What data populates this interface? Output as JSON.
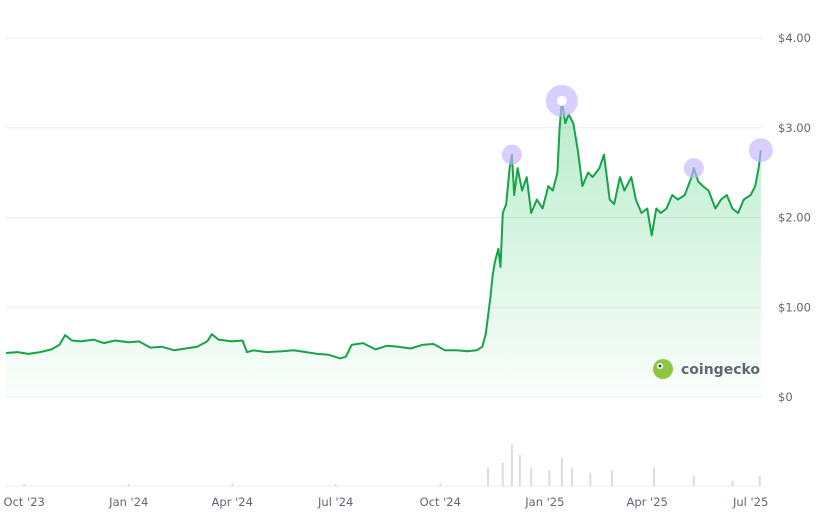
{
  "chart_data": {
    "type": "area",
    "title": "",
    "xlabel": "",
    "ylabel": "",
    "ylim": [
      0,
      4
    ],
    "grid": true,
    "line_color": "#16a34a",
    "fill_color": "#22c55e",
    "highlight_color": "#c4b5fd",
    "y_ticks": [
      {
        "value": 0,
        "label": "$0"
      },
      {
        "value": 1,
        "label": "$1.00"
      },
      {
        "value": 2,
        "label": "$2.00"
      },
      {
        "value": 3,
        "label": "$3.00"
      },
      {
        "value": 4,
        "label": "$4.00"
      }
    ],
    "x_ticks": [
      {
        "date": "2023-10-01",
        "label": "Oct '23"
      },
      {
        "date": "2024-01-01",
        "label": "Jan '24"
      },
      {
        "date": "2024-04-01",
        "label": "Apr '24"
      },
      {
        "date": "2024-07-01",
        "label": "Jul '24"
      },
      {
        "date": "2024-10-01",
        "label": "Oct '24"
      },
      {
        "date": "2025-01-01",
        "label": "Jan '25"
      },
      {
        "date": "2025-04-01",
        "label": "Apr '25"
      },
      {
        "date": "2025-07-01",
        "label": "Jul '25"
      }
    ],
    "x_range": [
      "2023-09-15",
      "2025-07-11"
    ],
    "series": [
      {
        "points": [
          [
            "2023-09-15",
            0.49
          ],
          [
            "2023-09-25",
            0.5
          ],
          [
            "2023-10-05",
            0.48
          ],
          [
            "2023-10-15",
            0.5
          ],
          [
            "2023-10-25",
            0.53
          ],
          [
            "2023-11-01",
            0.58
          ],
          [
            "2023-11-06",
            0.69
          ],
          [
            "2023-11-12",
            0.63
          ],
          [
            "2023-11-20",
            0.62
          ],
          [
            "2023-12-01",
            0.64
          ],
          [
            "2023-12-10",
            0.6
          ],
          [
            "2023-12-20",
            0.63
          ],
          [
            "2024-01-01",
            0.61
          ],
          [
            "2024-01-10",
            0.62
          ],
          [
            "2024-01-20",
            0.55
          ],
          [
            "2024-01-30",
            0.56
          ],
          [
            "2024-02-10",
            0.52
          ],
          [
            "2024-02-20",
            0.54
          ],
          [
            "2024-03-01",
            0.56
          ],
          [
            "2024-03-10",
            0.62
          ],
          [
            "2024-03-14",
            0.7
          ],
          [
            "2024-03-20",
            0.64
          ],
          [
            "2024-04-01",
            0.62
          ],
          [
            "2024-04-10",
            0.63
          ],
          [
            "2024-04-14",
            0.5
          ],
          [
            "2024-04-20",
            0.52
          ],
          [
            "2024-05-01",
            0.5
          ],
          [
            "2024-05-15",
            0.51
          ],
          [
            "2024-05-25",
            0.52
          ],
          [
            "2024-06-05",
            0.5
          ],
          [
            "2024-06-15",
            0.48
          ],
          [
            "2024-06-25",
            0.47
          ],
          [
            "2024-07-05",
            0.43
          ],
          [
            "2024-07-10",
            0.45
          ],
          [
            "2024-07-15",
            0.58
          ],
          [
            "2024-07-25",
            0.6
          ],
          [
            "2024-08-05",
            0.53
          ],
          [
            "2024-08-15",
            0.57
          ],
          [
            "2024-08-25",
            0.56
          ],
          [
            "2024-09-05",
            0.54
          ],
          [
            "2024-09-15",
            0.58
          ],
          [
            "2024-09-25",
            0.59
          ],
          [
            "2024-10-01",
            0.55
          ],
          [
            "2024-10-05",
            0.52
          ],
          [
            "2024-10-15",
            0.52
          ],
          [
            "2024-10-25",
            0.51
          ],
          [
            "2024-11-02",
            0.52
          ],
          [
            "2024-11-07",
            0.56
          ],
          [
            "2024-11-10",
            0.7
          ],
          [
            "2024-11-12",
            0.9
          ],
          [
            "2024-11-14",
            1.1
          ],
          [
            "2024-11-16",
            1.35
          ],
          [
            "2024-11-18",
            1.5
          ],
          [
            "2024-11-21",
            1.65
          ],
          [
            "2024-11-23",
            1.45
          ],
          [
            "2024-11-25",
            2.05
          ],
          [
            "2024-11-28",
            2.15
          ],
          [
            "2024-12-01",
            2.55
          ],
          [
            "2024-12-03",
            2.7
          ],
          [
            "2024-12-05",
            2.25
          ],
          [
            "2024-12-08",
            2.55
          ],
          [
            "2024-12-12",
            2.3
          ],
          [
            "2024-12-16",
            2.45
          ],
          [
            "2024-12-20",
            2.05
          ],
          [
            "2024-12-25",
            2.2
          ],
          [
            "2024-12-30",
            2.1
          ],
          [
            "2025-01-04",
            2.35
          ],
          [
            "2025-01-08",
            2.3
          ],
          [
            "2025-01-12",
            2.5
          ],
          [
            "2025-01-14",
            3.0
          ],
          [
            "2025-01-16",
            3.3
          ],
          [
            "2025-01-19",
            3.05
          ],
          [
            "2025-01-22",
            3.15
          ],
          [
            "2025-01-26",
            3.05
          ],
          [
            "2025-01-30",
            2.75
          ],
          [
            "2025-02-03",
            2.35
          ],
          [
            "2025-02-08",
            2.5
          ],
          [
            "2025-02-12",
            2.45
          ],
          [
            "2025-02-18",
            2.55
          ],
          [
            "2025-02-22",
            2.7
          ],
          [
            "2025-02-27",
            2.2
          ],
          [
            "2025-03-03",
            2.15
          ],
          [
            "2025-03-08",
            2.45
          ],
          [
            "2025-03-12",
            2.3
          ],
          [
            "2025-03-18",
            2.45
          ],
          [
            "2025-03-22",
            2.2
          ],
          [
            "2025-03-27",
            2.05
          ],
          [
            "2025-04-01",
            2.1
          ],
          [
            "2025-04-05",
            1.8
          ],
          [
            "2025-04-09",
            2.1
          ],
          [
            "2025-04-13",
            2.05
          ],
          [
            "2025-04-18",
            2.1
          ],
          [
            "2025-04-23",
            2.25
          ],
          [
            "2025-04-28",
            2.2
          ],
          [
            "2025-05-04",
            2.25
          ],
          [
            "2025-05-10",
            2.45
          ],
          [
            "2025-05-12",
            2.55
          ],
          [
            "2025-05-16",
            2.4
          ],
          [
            "2025-05-20",
            2.35
          ],
          [
            "2025-05-25",
            2.3
          ],
          [
            "2025-05-31",
            2.1
          ],
          [
            "2025-06-05",
            2.2
          ],
          [
            "2025-06-10",
            2.25
          ],
          [
            "2025-06-15",
            2.1
          ],
          [
            "2025-06-20",
            2.05
          ],
          [
            "2025-06-25",
            2.2
          ],
          [
            "2025-07-01",
            2.25
          ],
          [
            "2025-07-05",
            2.35
          ],
          [
            "2025-07-08",
            2.55
          ],
          [
            "2025-07-10",
            2.75
          ]
        ]
      }
    ],
    "highlights": [
      {
        "date": "2024-12-03",
        "value": 2.7,
        "size": "small"
      },
      {
        "date": "2025-01-16",
        "value": 3.3,
        "size": "large"
      },
      {
        "date": "2025-05-12",
        "value": 2.55,
        "size": "small"
      },
      {
        "date": "2025-07-10",
        "value": 2.75,
        "size": "medium"
      }
    ],
    "volume": [
      [
        "2023-10-01",
        0.04
      ],
      [
        "2024-01-01",
        0.04
      ],
      [
        "2024-04-01",
        0.05
      ],
      [
        "2024-07-01",
        0.04
      ],
      [
        "2024-10-01",
        0.05
      ],
      [
        "2024-11-12",
        0.35
      ],
      [
        "2024-11-25",
        0.45
      ],
      [
        "2024-12-03",
        0.8
      ],
      [
        "2024-12-10",
        0.6
      ],
      [
        "2024-12-20",
        0.35
      ],
      [
        "2025-01-05",
        0.3
      ],
      [
        "2025-01-16",
        0.55
      ],
      [
        "2025-01-25",
        0.35
      ],
      [
        "2025-02-10",
        0.25
      ],
      [
        "2025-03-01",
        0.3
      ],
      [
        "2025-04-07",
        0.35
      ],
      [
        "2025-05-12",
        0.2
      ],
      [
        "2025-06-15",
        0.1
      ],
      [
        "2025-07-09",
        0.2
      ]
    ],
    "watermark": "coingecko"
  }
}
